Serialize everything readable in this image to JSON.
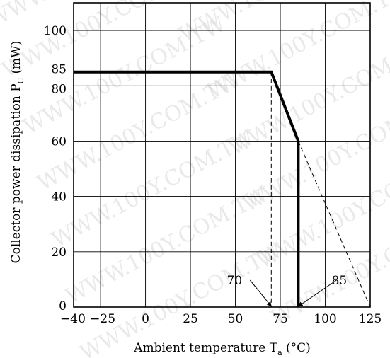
{
  "watermark": "WWW.100Y.COM.TW",
  "chart_data": {
    "type": "line",
    "xlabel_main": "Ambient temperature T",
    "xlabel_sub": "a",
    "xlabel_unit": " (°C)",
    "ylabel_main": "Collector power dissipation P",
    "ylabel_sub": "C",
    "ylabel_unit": " (mW)",
    "xlim": [
      -40,
      125
    ],
    "ylim": [
      0,
      110
    ],
    "x_gridlines": [
      -40,
      -25,
      0,
      25,
      50,
      75,
      100,
      125
    ],
    "y_gridlines": [
      0,
      20,
      40,
      60,
      80,
      100
    ],
    "x_ticks": [
      {
        "value": -40,
        "label": "−40"
      },
      {
        "value": -25,
        "label": "−25"
      },
      {
        "value": 0,
        "label": "0"
      },
      {
        "value": 25,
        "label": "25"
      },
      {
        "value": 50,
        "label": "50"
      },
      {
        "value": 75,
        "label": "75"
      },
      {
        "value": 100,
        "label": "100"
      },
      {
        "value": 125,
        "label": "125"
      }
    ],
    "y_ticks": [
      {
        "value": 0,
        "label": "0"
      },
      {
        "value": 20,
        "label": "20"
      },
      {
        "value": 40,
        "label": "40"
      },
      {
        "value": 60,
        "label": "60"
      },
      {
        "value": 80,
        "label": "80"
      },
      {
        "value": 85,
        "label": "85"
      },
      {
        "value": 100,
        "label": "100"
      }
    ],
    "series": [
      {
        "style": "solid-bold",
        "points": [
          [
            -40,
            85
          ],
          [
            70,
            85
          ],
          [
            85,
            60
          ],
          [
            85,
            0
          ]
        ]
      },
      {
        "style": "dashed",
        "points": [
          [
            70,
            85
          ],
          [
            70,
            0
          ]
        ]
      },
      {
        "style": "dashed",
        "points": [
          [
            85,
            60
          ],
          [
            125,
            0
          ]
        ]
      }
    ],
    "annotations": [
      {
        "text": "70",
        "target": [
          70,
          0
        ]
      },
      {
        "text": "85",
        "target": [
          85,
          0
        ]
      }
    ],
    "grid": true
  }
}
